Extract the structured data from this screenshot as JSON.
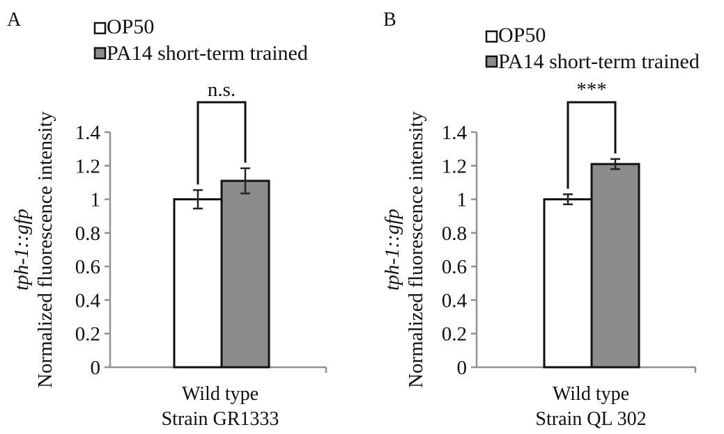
{
  "chart_data": [
    {
      "type": "bar",
      "panel_label": "A",
      "title": "",
      "categories": [
        "Wild type"
      ],
      "category_sublabel": "Strain GR1333",
      "ylabel_italic": "tph-1::gfp",
      "ylabel": "Normalized fluorescence intensity",
      "xlabel": "",
      "ylim": [
        0,
        1.4
      ],
      "yticks": [
        "0",
        "0.2",
        "0.4",
        "0.6",
        "0.8",
        "1",
        "1.2",
        "1.4"
      ],
      "series": [
        {
          "name": "OP50",
          "values": [
            1.0
          ],
          "errors": [
            0.055
          ],
          "color": "#ffffff"
        },
        {
          "name": "PA14 short-term trained",
          "values": [
            1.11
          ],
          "errors": [
            0.075
          ],
          "color": "#8c8c8c"
        }
      ],
      "significance": "n.s.",
      "legend": "top-left",
      "grid": false
    },
    {
      "type": "bar",
      "panel_label": "B",
      "title": "",
      "categories": [
        "Wild type"
      ],
      "category_sublabel": "Strain QL 302",
      "ylabel_italic": "tph-1::gfp",
      "ylabel": "Normalized fluorescence intensity",
      "xlabel": "",
      "ylim": [
        0,
        1.4
      ],
      "yticks": [
        "0",
        "0.2",
        "0.4",
        "0.6",
        "0.8",
        "1",
        "1.2",
        "1.4"
      ],
      "series": [
        {
          "name": "OP50",
          "values": [
            1.0
          ],
          "errors": [
            0.03
          ],
          "color": "#ffffff"
        },
        {
          "name": "PA14 short-term trained",
          "values": [
            1.21
          ],
          "errors": [
            0.03
          ],
          "color": "#8c8c8c"
        }
      ],
      "significance": "***",
      "legend": "top-left",
      "grid": false
    }
  ]
}
